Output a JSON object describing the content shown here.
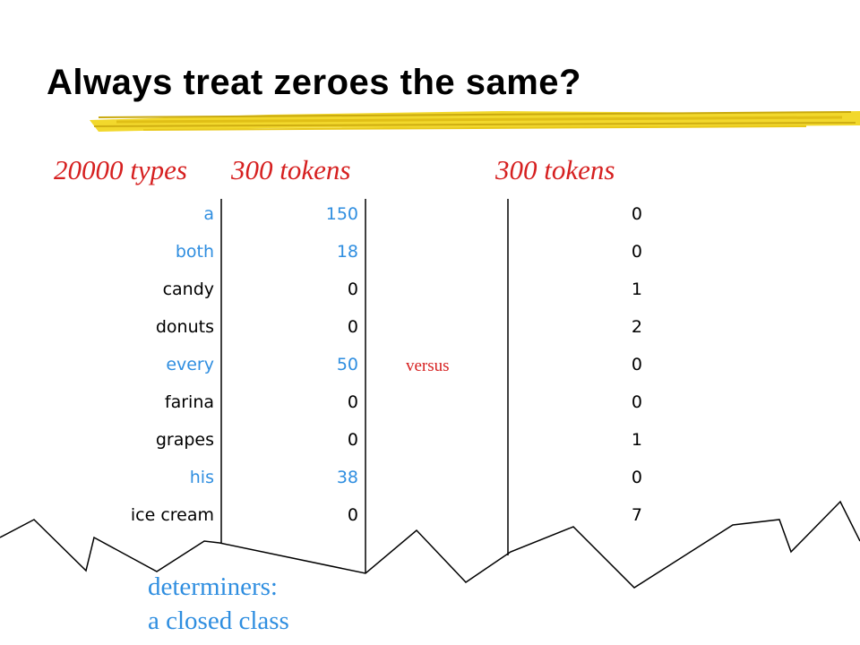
{
  "slide": {
    "title": "Always treat zeroes the same?",
    "col_headers": [
      "20000 types",
      "300 tokens",
      "300 tokens"
    ],
    "versus": "versus",
    "note_lines": [
      "determiners:",
      "a closed class"
    ]
  },
  "rows": [
    {
      "word": "a",
      "count1": "150",
      "count2": "0",
      "determiner": true
    },
    {
      "word": "both",
      "count1": "18",
      "count2": "0",
      "determiner": true
    },
    {
      "word": "candy",
      "count1": "0",
      "count2": "1",
      "determiner": false
    },
    {
      "word": "donuts",
      "count1": "0",
      "count2": "2",
      "determiner": false
    },
    {
      "word": "every",
      "count1": "50",
      "count2": "0",
      "determiner": true
    },
    {
      "word": "farina",
      "count1": "0",
      "count2": "0",
      "determiner": false
    },
    {
      "word": "grapes",
      "count1": "0",
      "count2": "1",
      "determiner": false
    },
    {
      "word": "his",
      "count1": "38",
      "count2": "0",
      "determiner": true
    },
    {
      "word": "ice cream",
      "count1": "0",
      "count2": "7",
      "determiner": false
    }
  ],
  "colors": {
    "determiner_text": "#2f8ee0",
    "header_text": "#d62020",
    "underline_stroke": "#e8c81a"
  }
}
